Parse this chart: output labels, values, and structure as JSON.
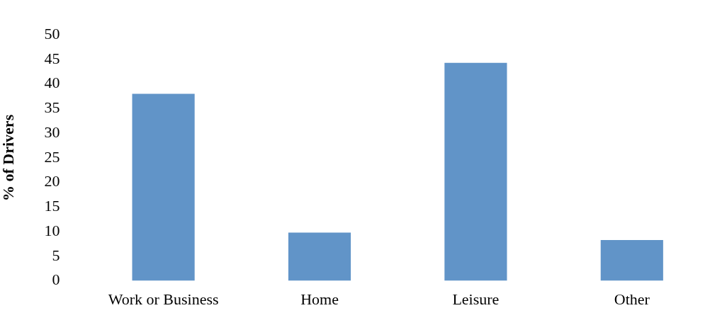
{
  "chart_data": {
    "type": "bar",
    "ylabel": "% of Drivers",
    "categories": [
      "Work or Business",
      "Home",
      "Leisure",
      "Other"
    ],
    "values": [
      38,
      9.8,
      44.3,
      8.3
    ],
    "color": "#6194c8",
    "ylim": [
      0,
      50
    ],
    "yticks": [
      0,
      5,
      10,
      15,
      20,
      25,
      30,
      35,
      40,
      45,
      50
    ],
    "grid": false,
    "legend": false
  }
}
